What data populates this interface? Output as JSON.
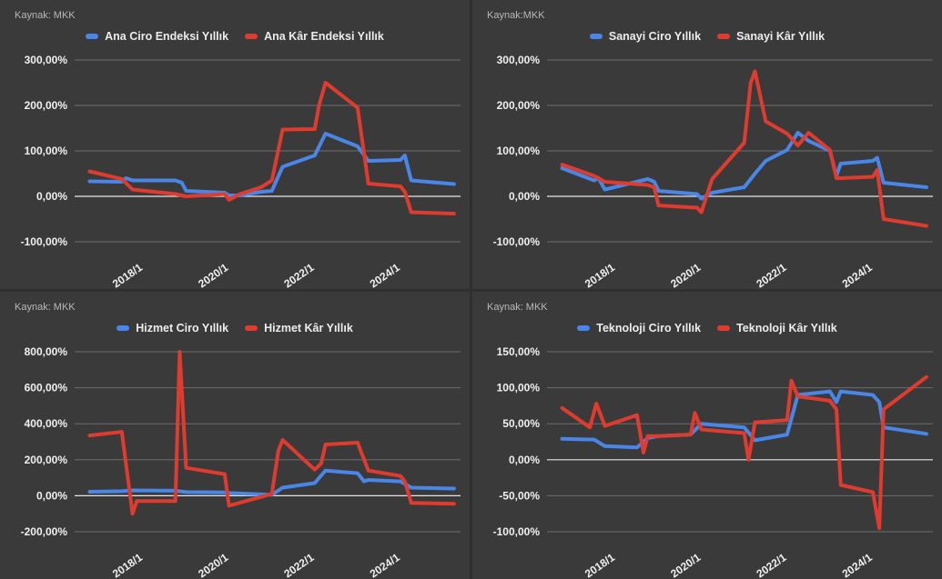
{
  "chart_data": [
    {
      "type": "line",
      "source": "Kaynak: MKK",
      "ylim": [
        -100,
        300
      ],
      "yticks": [
        -100,
        0,
        100,
        200,
        300
      ],
      "ytick_labels": [
        "-100,00%",
        "0,00%",
        "100,00%",
        "200,00%",
        "300,00%"
      ],
      "xticks": [
        2018,
        2020,
        2022,
        2024
      ],
      "xtick_labels": [
        "2018/1",
        "2020/1",
        "2022/1",
        "2024/1"
      ],
      "xlim": [
        2016.4,
        2025.4
      ],
      "colors": [
        "#4a86e8",
        "#e03b2f"
      ],
      "legend_placement": "top",
      "series": [
        {
          "name": "Ana Ciro Endeksi Yıllık",
          "x": [
            2016.75,
            2017.5,
            2017.6,
            2017.75,
            2018.75,
            2018.9,
            2019.0,
            2019.9,
            2020.0,
            2020.25,
            2020.75,
            2021.0,
            2021.25,
            2022.0,
            2022.25,
            2023.0,
            2023.25,
            2024.0,
            2024.1,
            2024.25,
            2025.25
          ],
          "y": [
            33,
            32,
            40,
            35,
            35,
            30,
            12,
            8,
            2,
            2,
            10,
            12,
            65,
            90,
            138,
            110,
            78,
            80,
            90,
            35,
            27
          ]
        },
        {
          "name": "Ana Kâr Endeksi Yıllık",
          "x": [
            2016.75,
            2017.5,
            2017.75,
            2018.75,
            2018.9,
            2019.0,
            2019.9,
            2020.0,
            2020.25,
            2020.75,
            2021.0,
            2021.25,
            2022.0,
            2022.1,
            2022.25,
            2023.0,
            2023.25,
            2024.0,
            2024.1,
            2024.25,
            2025.25
          ],
          "y": [
            55,
            38,
            15,
            5,
            2,
            0,
            5,
            -8,
            5,
            20,
            35,
            147,
            148,
            200,
            250,
            195,
            28,
            22,
            10,
            -35,
            -38
          ]
        }
      ]
    },
    {
      "type": "line",
      "source": "Kaynak:MKK",
      "ylim": [
        -100,
        300
      ],
      "yticks": [
        -100,
        0,
        100,
        200,
        300
      ],
      "ytick_labels": [
        "-100,00%",
        "0,00%",
        "100,00%",
        "200,00%",
        "300,00%"
      ],
      "xticks": [
        2018,
        2020,
        2022,
        2024
      ],
      "xtick_labels": [
        "2018/1",
        "2020/1",
        "2022/1",
        "2024/1"
      ],
      "xlim": [
        2016.4,
        2025.4
      ],
      "colors": [
        "#4a86e8",
        "#e03b2f"
      ],
      "legend_placement": "top",
      "series": [
        {
          "name": "Sanayi Ciro Yıllık",
          "x": [
            2016.75,
            2017.5,
            2017.6,
            2017.75,
            2018.75,
            2018.9,
            2019.0,
            2019.9,
            2020.0,
            2020.25,
            2021.0,
            2021.25,
            2021.5,
            2022.0,
            2022.25,
            2022.5,
            2023.0,
            2023.15,
            2023.25,
            2024.0,
            2024.1,
            2024.25,
            2025.25
          ],
          "y": [
            62,
            35,
            40,
            15,
            38,
            32,
            12,
            5,
            -5,
            8,
            20,
            50,
            78,
            102,
            140,
            122,
            100,
            45,
            72,
            78,
            85,
            30,
            20
          ]
        },
        {
          "name": "Sanayi Kâr Yıllık",
          "x": [
            2016.75,
            2017.5,
            2017.75,
            2018.75,
            2018.9,
            2019.0,
            2019.9,
            2020.0,
            2020.25,
            2021.0,
            2021.15,
            2021.25,
            2021.5,
            2022.0,
            2022.25,
            2022.5,
            2023.0,
            2023.15,
            2023.25,
            2024.0,
            2024.1,
            2024.25,
            2025.25
          ],
          "y": [
            70,
            45,
            32,
            25,
            20,
            -20,
            -25,
            -35,
            38,
            118,
            250,
            275,
            165,
            138,
            112,
            140,
            102,
            40,
            40,
            43,
            58,
            -50,
            -65
          ]
        }
      ]
    },
    {
      "type": "line",
      "source": "Kaynak: MKK",
      "ylim": [
        -200,
        800
      ],
      "yticks": [
        -200,
        0,
        200,
        400,
        600,
        800
      ],
      "ytick_labels": [
        "-200,00%",
        "0,00%",
        "200,00%",
        "400,00%",
        "600,00%",
        "800,00%"
      ],
      "xticks": [
        2018,
        2020,
        2022,
        2024
      ],
      "xtick_labels": [
        "2018/1",
        "2020/1",
        "2022/1",
        "2024/1"
      ],
      "xlim": [
        2016.4,
        2025.4
      ],
      "colors": [
        "#4a86e8",
        "#e03b2f"
      ],
      "legend_placement": "top",
      "series": [
        {
          "name": "Hizmet Ciro Yıllık",
          "x": [
            2016.75,
            2017.5,
            2017.75,
            2018.75,
            2019.0,
            2019.9,
            2020.0,
            2021.0,
            2021.25,
            2022.0,
            2022.25,
            2023.0,
            2023.15,
            2023.25,
            2024.0,
            2024.25,
            2025.25
          ],
          "y": [
            22,
            25,
            30,
            28,
            20,
            18,
            15,
            5,
            45,
            70,
            140,
            125,
            80,
            88,
            80,
            45,
            40
          ]
        },
        {
          "name": "Hizmet Kâr Yıllık",
          "x": [
            2016.75,
            2017.5,
            2017.75,
            2017.85,
            2018.0,
            2018.75,
            2018.85,
            2019.0,
            2019.9,
            2020.0,
            2021.0,
            2021.15,
            2021.25,
            2022.0,
            2022.15,
            2022.25,
            2023.0,
            2023.25,
            2024.0,
            2024.1,
            2024.25,
            2025.25
          ],
          "y": [
            335,
            355,
            -100,
            -30,
            -30,
            -30,
            800,
            155,
            120,
            -55,
            10,
            250,
            310,
            145,
            180,
            285,
            295,
            140,
            110,
            80,
            -40,
            -45
          ]
        }
      ]
    },
    {
      "type": "line",
      "source": "Kaynak: MKK",
      "ylim": [
        -100,
        150
      ],
      "yticks": [
        -100,
        -50,
        0,
        50,
        100,
        150
      ],
      "ytick_labels": [
        "-100,00%",
        "-50,00%",
        "0,00%",
        "50,00%",
        "100,00%",
        "150,00%"
      ],
      "xticks": [
        2018,
        2020,
        2022,
        2024
      ],
      "xtick_labels": [
        "2018/1",
        "2020/1",
        "2022/1",
        "2024/1"
      ],
      "xlim": [
        2016.4,
        2025.4
      ],
      "colors": [
        "#4a86e8",
        "#e03b2f"
      ],
      "legend_placement": "top",
      "series": [
        {
          "name": "Teknoloji Ciro Yıllık",
          "x": [
            2016.75,
            2017.5,
            2017.75,
            2018.5,
            2018.75,
            2019.0,
            2019.75,
            2020.0,
            2021.0,
            2021.25,
            2022.0,
            2022.25,
            2023.0,
            2023.15,
            2023.25,
            2024.0,
            2024.15,
            2024.25,
            2025.25
          ],
          "y": [
            29,
            28,
            19,
            17,
            30,
            33,
            35,
            50,
            45,
            27,
            35,
            90,
            95,
            80,
            95,
            90,
            80,
            45,
            36
          ]
        },
        {
          "name": "Teknoloji Kâr Yıllık",
          "x": [
            2016.75,
            2017.4,
            2017.55,
            2017.75,
            2018.5,
            2018.65,
            2018.75,
            2019.0,
            2019.75,
            2019.85,
            2020.0,
            2021.0,
            2021.1,
            2021.25,
            2022.0,
            2022.1,
            2022.25,
            2023.0,
            2023.15,
            2023.25,
            2024.0,
            2024.15,
            2024.25,
            2025.25
          ],
          "y": [
            72,
            45,
            78,
            47,
            62,
            10,
            33,
            33,
            35,
            65,
            42,
            37,
            0,
            52,
            55,
            110,
            88,
            82,
            70,
            -35,
            -45,
            -95,
            70,
            115
          ]
        }
      ]
    }
  ]
}
